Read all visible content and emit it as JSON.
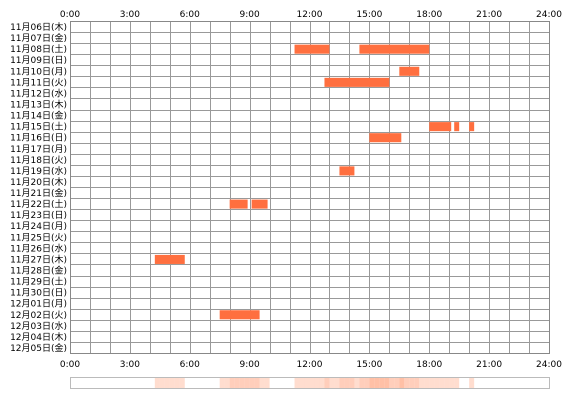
{
  "chart_data": {
    "type": "timeline",
    "x_tick_labels": [
      "0:00",
      "3:00",
      "6:00",
      "9:00",
      "12:00",
      "15:00",
      "18:00",
      "21:00",
      "24:00"
    ],
    "xlim": [
      0,
      24
    ],
    "x_unit": "hour",
    "grid": true,
    "days": [
      "11月06日(木)",
      "11月07日(金)",
      "11月08日(土)",
      "11月09日(日)",
      "11月10日(月)",
      "11月11日(火)",
      "11月12日(水)",
      "11月13日(木)",
      "11月14日(金)",
      "11月15日(土)",
      "11月16日(日)",
      "11月17日(月)",
      "11月18日(火)",
      "11月19日(水)",
      "11月20日(木)",
      "11月21日(金)",
      "11月22日(土)",
      "11月23日(日)",
      "11月24日(月)",
      "11月25日(火)",
      "11月26日(水)",
      "11月27日(木)",
      "11月28日(金)",
      "11月29日(土)",
      "11月30日(日)",
      "12月01日(月)",
      "12月02日(火)",
      "12月03日(水)",
      "12月04日(木)",
      "12月05日(金)"
    ],
    "events": [
      {
        "day": "11月08日(土)",
        "start": 11.25,
        "end": 13.0
      },
      {
        "day": "11月08日(土)",
        "start": 14.5,
        "end": 18.0
      },
      {
        "day": "11月10日(月)",
        "start": 16.5,
        "end": 17.5
      },
      {
        "day": "11月11日(火)",
        "start": 12.75,
        "end": 16.0
      },
      {
        "day": "11月15日(土)",
        "start": 18.0,
        "end": 19.1
      },
      {
        "day": "11月15日(土)",
        "start": 19.25,
        "end": 19.5
      },
      {
        "day": "11月15日(土)",
        "start": 20.0,
        "end": 20.25
      },
      {
        "day": "11月16日(日)",
        "start": 15.0,
        "end": 16.6
      },
      {
        "day": "11月19日(水)",
        "start": 13.5,
        "end": 14.25
      },
      {
        "day": "11月22日(土)",
        "start": 8.0,
        "end": 8.9
      },
      {
        "day": "11月22日(土)",
        "start": 9.1,
        "end": 9.9
      },
      {
        "day": "11月27日(木)",
        "start": 4.25,
        "end": 5.75
      },
      {
        "day": "12月02日(火)",
        "start": 7.5,
        "end": 9.5
      }
    ],
    "colors": {
      "bar": "#ff6f3f",
      "bar_light": "#ffb090",
      "grid": "#999999",
      "frame": "#888888",
      "heat_base": "#ffefe6"
    }
  }
}
